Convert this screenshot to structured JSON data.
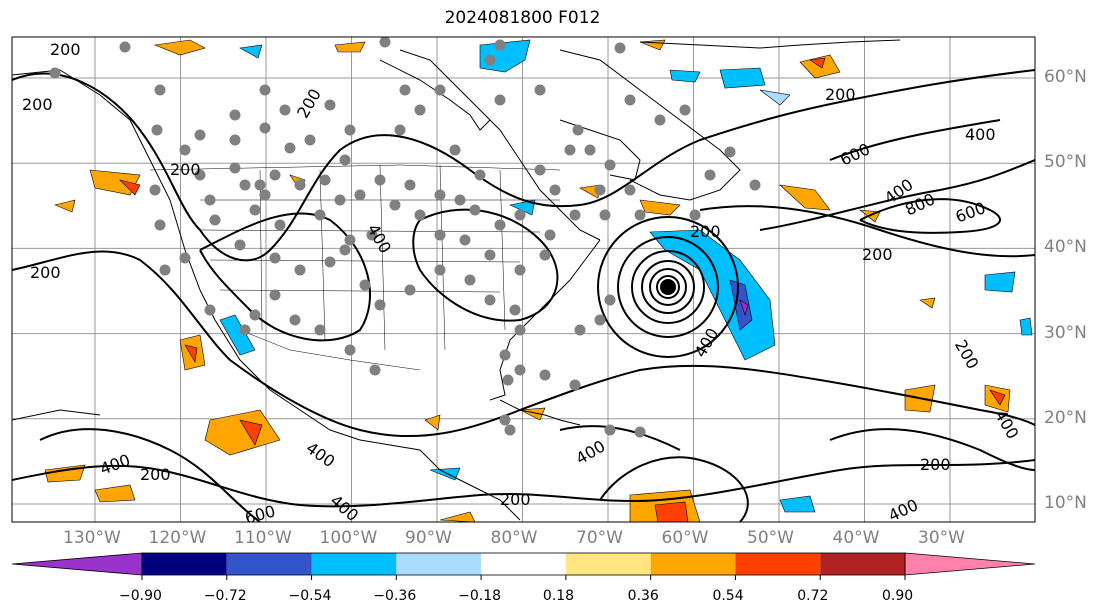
{
  "title": "2024081800 F012",
  "map": {
    "lon_labels": [
      "130°W",
      "120°W",
      "110°W",
      "100°W",
      "90°W",
      "80°W",
      "70°W",
      "60°W",
      "50°W",
      "40°W",
      "30°W"
    ],
    "lat_labels": [
      "60°N",
      "50°N",
      "40°N",
      "30°N",
      "20°N",
      "10°N"
    ],
    "contour_labels": [
      "200",
      "400",
      "600",
      "800"
    ],
    "gridline_color": "#999999",
    "coastline_color": "#000000",
    "contour_color": "#000000",
    "station_marker_color": "#808080",
    "storm_center_color": "#000000",
    "icon": "weather-model-forecast-map"
  },
  "colorbar": {
    "ticks": [
      "−0.90",
      "−0.72",
      "−0.54",
      "−0.36",
      "−0.18",
      "0.18",
      "0.36",
      "0.54",
      "0.72",
      "0.90"
    ],
    "colors": [
      "#9933cc",
      "#000080",
      "#3355cc",
      "#00bfff",
      "#aadcff",
      "#ffffff",
      "#ffe680",
      "#ffa500",
      "#ff4000",
      "#b22222",
      "#ff80aa"
    ],
    "extend": "both"
  }
}
